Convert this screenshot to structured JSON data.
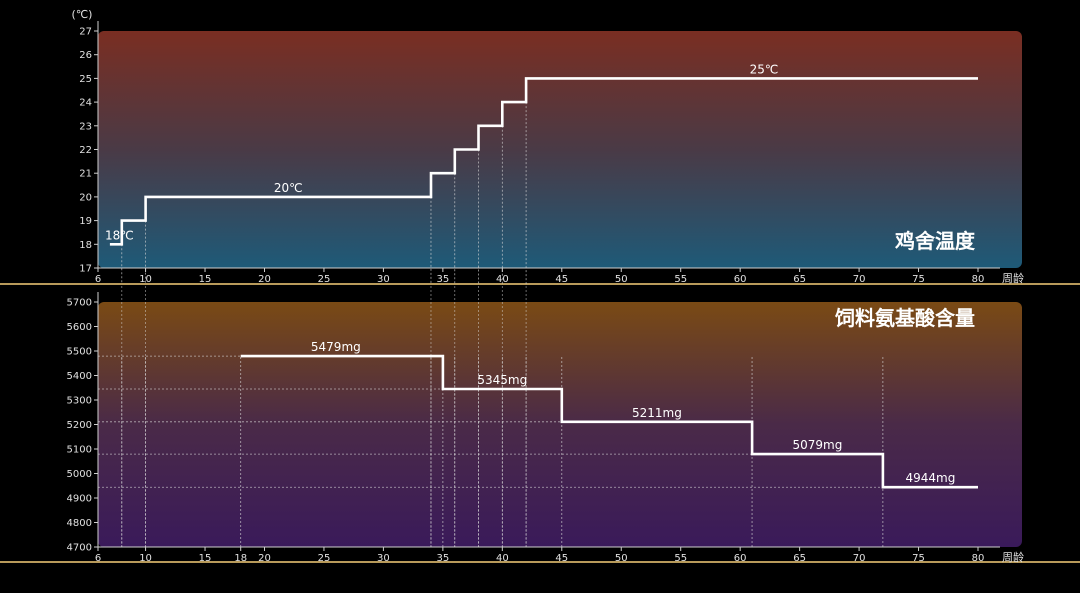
{
  "chart_data": [
    {
      "type": "line",
      "step": true,
      "title": "鸡舍温度",
      "unit_label": "(℃)",
      "xlabel": "周龄",
      "ylim": [
        17,
        27
      ],
      "xlim": [
        6,
        80
      ],
      "y_ticks": [
        17,
        18,
        19,
        20,
        21,
        22,
        23,
        24,
        25,
        26,
        27
      ],
      "x_ticks": [
        6,
        10,
        15,
        20,
        25,
        30,
        35,
        40,
        45,
        50,
        55,
        60,
        65,
        70,
        75,
        80
      ],
      "series": [
        {
          "points": [
            [
              8,
              18
            ],
            [
              8,
              19
            ],
            [
              10,
              19
            ],
            [
              10,
              20
            ],
            [
              34,
              20
            ],
            [
              34,
              21
            ],
            [
              36,
              21
            ],
            [
              36,
              22
            ],
            [
              38,
              22
            ],
            [
              38,
              23
            ],
            [
              40,
              23
            ],
            [
              40,
              24
            ],
            [
              42,
              24
            ],
            [
              42,
              25
            ],
            [
              80,
              25
            ]
          ],
          "start": [
            7,
            18
          ]
        }
      ],
      "guide_x": [
        8,
        10,
        34,
        36,
        38,
        40,
        42
      ],
      "annotations": [
        {
          "x": 7.8,
          "y": 18,
          "text": "18℃"
        },
        {
          "x": 22,
          "y": 20,
          "text": "20℃"
        },
        {
          "x": 62,
          "y": 25,
          "text": "25℃"
        }
      ],
      "gradient": {
        "top": "#7a2e22",
        "mid": "#4a3a46",
        "bottom": "#1e5a78"
      }
    },
    {
      "type": "line",
      "step": true,
      "title": "饲料氨基酸含量",
      "xlabel": "周龄",
      "ylim": [
        4700,
        5700
      ],
      "xlim": [
        6,
        80
      ],
      "y_ticks": [
        4700,
        4800,
        4900,
        5000,
        5100,
        5200,
        5300,
        5400,
        5500,
        5600,
        5700
      ],
      "x_ticks": [
        6,
        10,
        15,
        18,
        20,
        25,
        30,
        35,
        40,
        45,
        50,
        55,
        60,
        65,
        70,
        75,
        80
      ],
      "series": [
        {
          "points": [
            [
              18,
              5479
            ],
            [
              35,
              5479
            ],
            [
              35,
              5345
            ],
            [
              45,
              5345
            ],
            [
              45,
              5211
            ],
            [
              61,
              5211
            ],
            [
              61,
              5079
            ],
            [
              72,
              5079
            ],
            [
              72,
              4944
            ],
            [
              80,
              4944
            ]
          ]
        }
      ],
      "guide_x": [
        8,
        10,
        18,
        34,
        35,
        36,
        38,
        40,
        42,
        45,
        61,
        72
      ],
      "guide_y": [
        5479,
        5345,
        5211,
        5079,
        4944
      ],
      "annotations": [
        {
          "x": 26,
          "y": 5479,
          "text": "5479mg"
        },
        {
          "x": 40,
          "y": 5345,
          "text": "5345mg"
        },
        {
          "x": 53,
          "y": 5211,
          "text": "5211mg"
        },
        {
          "x": 66.5,
          "y": 5079,
          "text": "5079mg"
        },
        {
          "x": 76,
          "y": 4944,
          "text": "4944mg"
        }
      ],
      "gradient": {
        "top": "#7a4a14",
        "mid": "#4a2a48",
        "bottom": "#3a1a5a"
      }
    }
  ]
}
